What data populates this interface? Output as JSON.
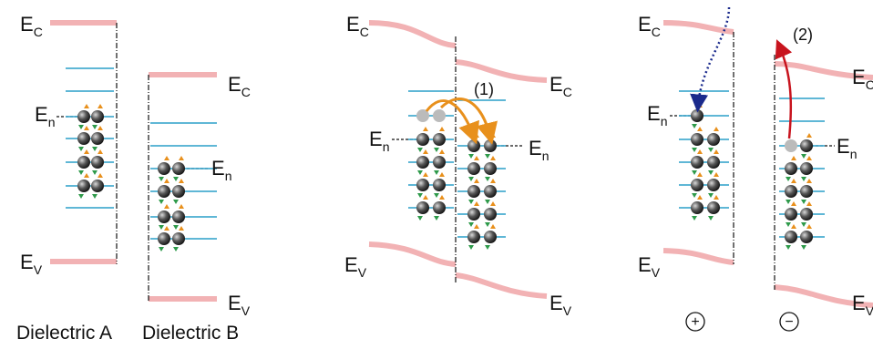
{
  "labels": [
    {
      "symbol": "E",
      "sub": "C"
    },
    {
      "symbol": "E",
      "sub": "n"
    },
    {
      "symbol": "E",
      "sub": "V"
    },
    {
      "symbol": "E",
      "sub": "C"
    },
    {
      "symbol": "E",
      "sub": "n"
    },
    {
      "symbol": "E",
      "sub": "V"
    },
    {
      "symbol": "E",
      "sub": "C"
    },
    {
      "symbol": "E",
      "sub": "C"
    },
    {
      "symbol": "E",
      "sub": "n"
    },
    {
      "symbol": "E",
      "sub": "n"
    },
    {
      "symbol": "E",
      "sub": "V"
    },
    {
      "symbol": "E",
      "sub": "V"
    },
    {
      "symbol": "E",
      "sub": "C"
    },
    {
      "symbol": "E",
      "sub": "n"
    },
    {
      "symbol": "E",
      "sub": "V"
    },
    {
      "symbol": "E",
      "sub": "C"
    },
    {
      "symbol": "E",
      "sub": "n"
    },
    {
      "symbol": "E",
      "sub": "V"
    }
  ],
  "captions": [
    "Dielectric A",
    "Dielectric B"
  ],
  "steps": [
    "(1)",
    "(2)"
  ],
  "charges": [
    "+",
    "−"
  ]
}
